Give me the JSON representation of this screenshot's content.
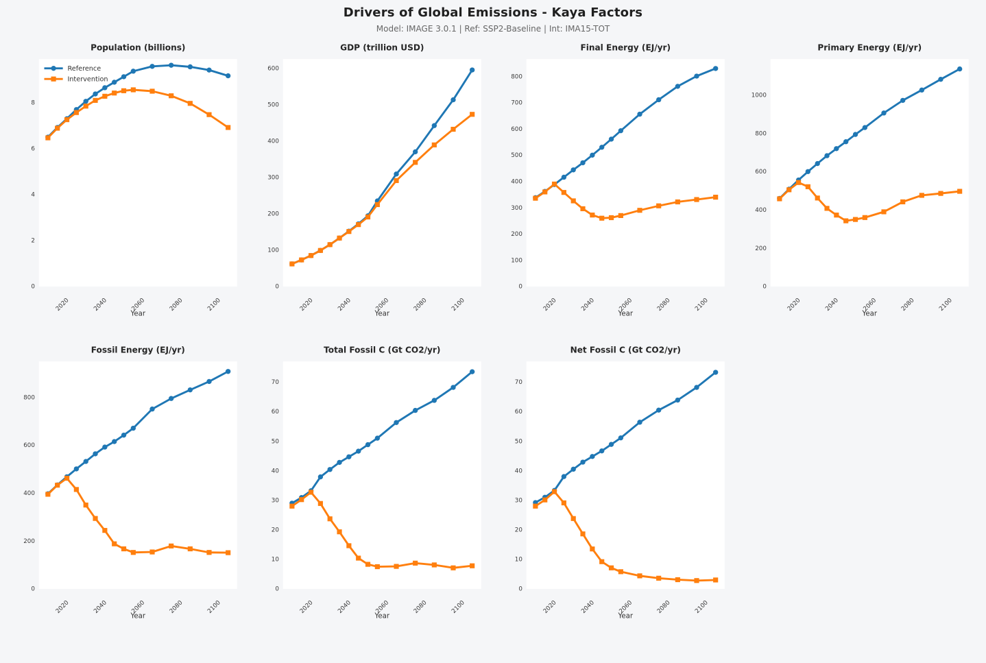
{
  "header": {
    "title": "Drivers of Global Emissions - Kaya Factors",
    "subtitle": "Model: IMAGE 3.0.1  |  Ref: SSP2-Baseline  |  Int: IMA15-TOT"
  },
  "colors": {
    "background": "#f5f6f8",
    "plot_background": "#ffffff",
    "reference": "#1f77b4",
    "intervention": "#ff7f0e",
    "title_text": "#262626",
    "tick_text": "#3b3b3b",
    "axis_label_text": "#333333",
    "legend_text": "#333333"
  },
  "legend": {
    "location": "upper-left",
    "shown_on_chart": "Population (billions)",
    "entries": [
      {
        "label": "Reference",
        "series": "reference",
        "marker": "circle"
      },
      {
        "label": "Intervention",
        "series": "intervention",
        "marker": "square"
      }
    ]
  },
  "chart_data": {
    "type": "line",
    "x_label": "Year",
    "x_ticks": [
      2020,
      2040,
      2060,
      2080,
      2100
    ],
    "x_range": [
      2005.25,
      2109.75
    ],
    "years": [
      2010,
      2015,
      2020,
      2025,
      2030,
      2035,
      2040,
      2045,
      2050,
      2055,
      2065,
      2075,
      2085,
      2095,
      2105
    ],
    "charts": [
      {
        "title": "Population (billions)",
        "y_ticks": [
          0,
          2,
          4,
          6,
          8
        ],
        "y_max": 9.9,
        "legend": true,
        "series": {
          "reference": [
            6.5,
            6.92,
            7.3,
            7.7,
            8.06,
            8.38,
            8.65,
            8.89,
            9.13,
            9.37,
            9.58,
            9.63,
            9.56,
            9.42,
            9.17
          ],
          "intervention": [
            6.47,
            6.89,
            7.26,
            7.57,
            7.85,
            8.1,
            8.28,
            8.42,
            8.52,
            8.56,
            8.5,
            8.3,
            7.97,
            7.48,
            6.92
          ]
        }
      },
      {
        "title": "GDP (trillion USD)",
        "y_ticks": [
          0,
          100,
          200,
          300,
          400,
          500,
          600
        ],
        "y_max": 625,
        "legend": false,
        "series": {
          "reference": [
            62,
            73,
            85,
            99,
            115,
            133,
            152,
            172,
            194,
            235,
            309,
            370,
            442,
            513,
            595
          ],
          "intervention": [
            62,
            73,
            85,
            99,
            115,
            133,
            151,
            170,
            191,
            225,
            291,
            341,
            389,
            432,
            473
          ]
        }
      },
      {
        "title": "Final Energy (EJ/yr)",
        "y_ticks": [
          0,
          100,
          200,
          300,
          400,
          500,
          600,
          700,
          800
        ],
        "y_max": 866,
        "legend": false,
        "series": {
          "reference": [
            338,
            362,
            388,
            416,
            444,
            471,
            500,
            530,
            561,
            593,
            656,
            711,
            762,
            801,
            830
          ],
          "intervention": [
            336,
            360,
            390,
            358,
            326,
            296,
            272,
            260,
            262,
            270,
            290,
            307,
            322,
            331,
            340
          ]
        }
      },
      {
        "title": "Primary Energy (EJ/yr)",
        "y_ticks": [
          0,
          200,
          400,
          600,
          800,
          1000
        ],
        "y_max": 1188,
        "legend": false,
        "series": {
          "reference": [
            460,
            508,
            556,
            600,
            642,
            683,
            720,
            756,
            794,
            830,
            906,
            972,
            1026,
            1082,
            1136
          ],
          "intervention": [
            458,
            505,
            543,
            521,
            462,
            408,
            373,
            343,
            350,
            360,
            390,
            442,
            476,
            486,
            497
          ]
        }
      },
      {
        "title": "Fossil Energy (EJ/yr)",
        "y_ticks": [
          0,
          200,
          400,
          600,
          800
        ],
        "y_max": 950,
        "legend": false,
        "series": {
          "reference": [
            397,
            434,
            468,
            501,
            532,
            564,
            592,
            615,
            642,
            671,
            751,
            795,
            831,
            866,
            908
          ],
          "intervention": [
            395,
            433,
            462,
            415,
            350,
            294,
            244,
            188,
            167,
            152,
            154,
            179,
            167,
            152,
            151
          ]
        }
      },
      {
        "title": "Total Fossil C (Gt CO2/yr)",
        "y_ticks": [
          0,
          10,
          20,
          30,
          40,
          50,
          60,
          70
        ],
        "y_max": 77,
        "legend": false,
        "series": {
          "reference": [
            29.0,
            30.9,
            33.2,
            37.9,
            40.4,
            42.8,
            44.7,
            46.6,
            48.8,
            51.0,
            56.3,
            60.4,
            63.8,
            68.2,
            73.5
          ],
          "intervention": [
            28.0,
            30.2,
            32.7,
            28.9,
            23.7,
            19.3,
            14.6,
            10.4,
            8.3,
            7.5,
            7.6,
            8.7,
            8.1,
            7.1,
            7.8
          ]
        }
      },
      {
        "title": "Net Fossil C (Gt CO2/yr)",
        "y_ticks": [
          0,
          10,
          20,
          30,
          40,
          50,
          60,
          70
        ],
        "y_max": 77,
        "legend": false,
        "series": {
          "reference": [
            29.2,
            31.0,
            33.3,
            38.0,
            40.5,
            42.9,
            44.8,
            46.7,
            48.9,
            51.1,
            56.4,
            60.5,
            63.9,
            68.2,
            73.3
          ],
          "intervention": [
            28.0,
            30.1,
            32.9,
            29.1,
            23.8,
            18.6,
            13.5,
            9.2,
            7.1,
            5.8,
            4.4,
            3.6,
            3.1,
            2.8,
            3.0
          ]
        }
      }
    ]
  }
}
